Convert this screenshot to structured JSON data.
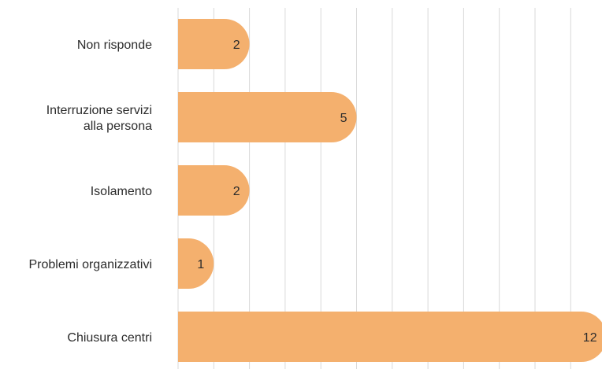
{
  "chart_data": {
    "type": "bar",
    "orientation": "horizontal",
    "categories": [
      [
        "Non risponde"
      ],
      [
        "Interruzione servizi",
        "alla persona"
      ],
      [
        "Isolamento"
      ],
      [
        "Problemi organizzativi"
      ],
      [
        "Chiusura centri"
      ]
    ],
    "values": [
      2,
      5,
      2,
      1,
      12
    ],
    "xlim": [
      0,
      12
    ],
    "grid": true,
    "bar_color": "#f4b06e",
    "grid_color": "#d9d9d9",
    "text_color": "#2b2b2b",
    "title": "",
    "xlabel": "",
    "ylabel": ""
  }
}
